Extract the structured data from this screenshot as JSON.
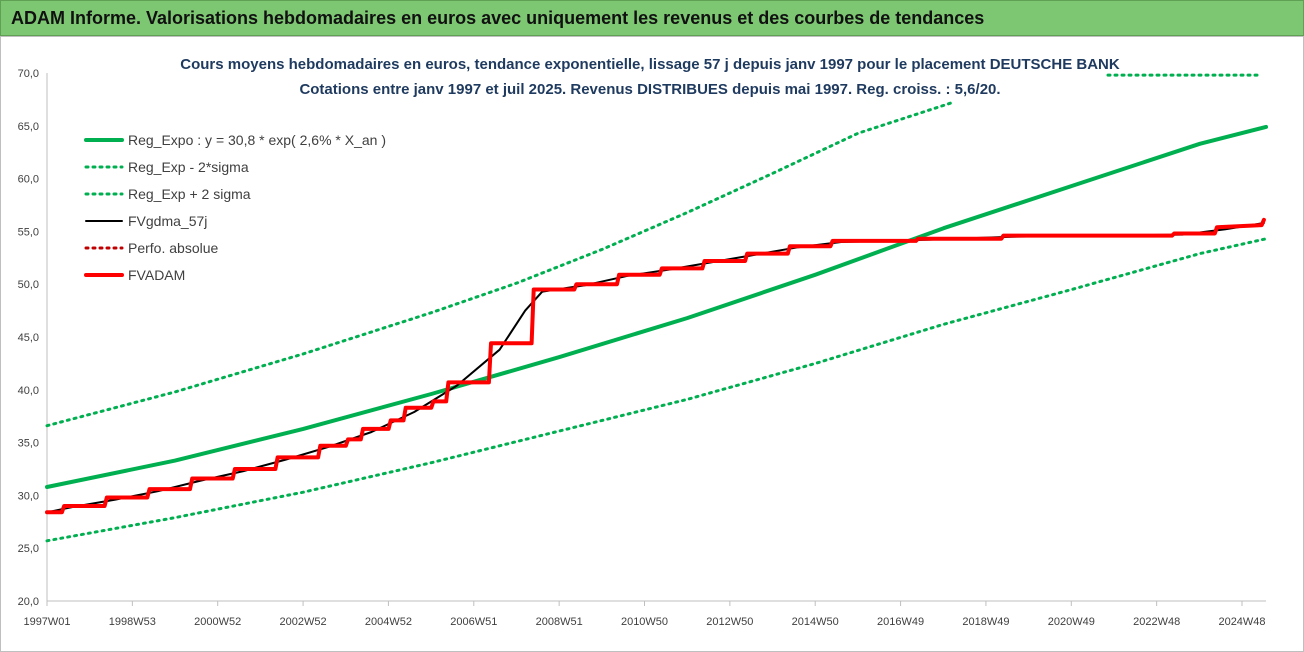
{
  "header": {
    "title": "ADAM Informe. Valorisations hebdomadaires en euros avec uniquement les revenus et des courbes de tendances"
  },
  "colors": {
    "header_bg": "#7dc672",
    "trend_green": "#00b050",
    "adam_red": "#ff0000",
    "fv_black": "#000000",
    "perfo_red": "#c00000"
  },
  "chart_data": {
    "type": "line",
    "title_line1": "Cours moyens hebdomadaires en euros, tendance exponentielle, lissage 57 j depuis janv 1997 pour le placement DEUTSCHE BANK",
    "title_line2": "Cotations entre janv 1997 et juil 2025. Revenus DISTRIBUES depuis mai 1997. Reg. croiss. : 5,6/20.",
    "ylim": [
      20,
      70
    ],
    "y_ticks": [
      "20,0",
      "25,0",
      "30,0",
      "35,0",
      "40,0",
      "45,0",
      "50,0",
      "55,0",
      "60,0",
      "65,0",
      "70,0"
    ],
    "x_ticks": [
      "1997W01",
      "1998W53",
      "2000W52",
      "2002W52",
      "2004W52",
      "2006W51",
      "2008W51",
      "2010W50",
      "2012W50",
      "2014W50",
      "2016W49",
      "2018W49",
      "2020W49",
      "2022W48",
      "2024W48"
    ],
    "xlim": [
      1997.0,
      2025.55
    ],
    "legend_position": "top-left",
    "legend": [
      {
        "label": "Reg_Expo : y = 30,8 * exp( 2,6% *  X_an )",
        "color": "#00b050",
        "style": "solid-thick"
      },
      {
        "label": "Reg_Exp - 2*sigma",
        "color": "#00b050",
        "style": "dotted"
      },
      {
        "label": "Reg_Exp + 2 sigma",
        "color": "#00b050",
        "style": "dotted"
      },
      {
        "label": "FVgdma_57j",
        "color": "#000000",
        "style": "solid"
      },
      {
        "label": "Perfo. absolue",
        "color": "#c00000",
        "style": "dotted"
      },
      {
        "label": "FVADAM",
        "color": "#ff0000",
        "style": "solid-thick"
      }
    ],
    "series": [
      {
        "name": "Reg_Expo : y = 30,8 * exp( 2,6% *  X_an )",
        "x": [
          1997.0,
          2000.0,
          2003.0,
          2006.0,
          2009.0,
          2012.0,
          2015.0,
          2018.0,
          2021.0,
          2024.0,
          2025.55
        ],
        "y": [
          30.8,
          33.3,
          36.3,
          39.6,
          43.1,
          46.8,
          50.9,
          55.3,
          59.3,
          63.3,
          64.9
        ]
      },
      {
        "name": "Reg_Exp - 2*sigma",
        "x": [
          1997.0,
          2000.0,
          2003.0,
          2006.0,
          2009.0,
          2012.0,
          2015.0,
          2018.0,
          2021.0,
          2024.0,
          2025.55
        ],
        "y": [
          25.7,
          27.9,
          30.3,
          33.1,
          36.1,
          39.1,
          42.5,
          46.2,
          49.5,
          52.9,
          54.3
        ]
      },
      {
        "name": "Reg_Exp + 2 sigma",
        "x": [
          1997.0,
          2000.0,
          2003.0,
          2006.0,
          2008.0,
          2010.0,
          2012.0,
          2014.0,
          2016.0,
          2018.2
        ],
        "y": [
          36.6,
          39.8,
          43.4,
          47.3,
          50.1,
          53.3,
          56.8,
          60.5,
          64.3,
          67.2
        ]
      },
      {
        "name": "FVADAM",
        "x": [
          1997.0,
          1997.35,
          1997.4,
          1998.35,
          1998.4,
          1999.35,
          1999.4,
          2000.35,
          2000.4,
          2001.35,
          2001.4,
          2002.35,
          2002.4,
          2003.35,
          2003.4,
          2004.0,
          2004.05,
          2004.35,
          2004.4,
          2005.0,
          2005.05,
          2005.35,
          2005.4,
          2006.0,
          2006.05,
          2006.35,
          2006.4,
          2007.35,
          2007.4,
          2008.35,
          2008.4,
          2009.35,
          2009.4,
          2010.35,
          2010.4,
          2011.35,
          2011.4,
          2012.35,
          2012.4,
          2013.35,
          2013.4,
          2014.35,
          2014.4,
          2015.35,
          2015.4,
          2017.35,
          2017.4,
          2019.35,
          2019.4,
          2023.35,
          2023.4,
          2024.35,
          2024.4,
          2025.45,
          2025.5
        ],
        "y": [
          28.4,
          28.4,
          29.0,
          29.0,
          29.8,
          29.8,
          30.6,
          30.6,
          31.6,
          31.6,
          32.5,
          32.5,
          33.6,
          33.6,
          34.7,
          34.7,
          35.3,
          35.3,
          36.3,
          36.3,
          37.1,
          37.1,
          38.3,
          38.3,
          38.9,
          38.9,
          40.7,
          40.7,
          44.4,
          44.4,
          49.5,
          49.5,
          50.0,
          50.0,
          50.9,
          50.9,
          51.5,
          51.5,
          52.2,
          52.2,
          52.9,
          52.9,
          53.6,
          53.6,
          54.1,
          54.1,
          54.3,
          54.3,
          54.6,
          54.6,
          54.8,
          54.8,
          55.4,
          55.6,
          56.1
        ]
      },
      {
        "name": "FVgdma_57j",
        "x": [
          1997.0,
          1997.6,
          1998.6,
          1999.6,
          2000.6,
          2001.6,
          2002.6,
          2003.6,
          2004.6,
          2005.6,
          2006.6,
          2007.6,
          2008.2,
          2008.6,
          2009.6,
          2010.6,
          2011.6,
          2012.6,
          2013.6,
          2014.6,
          2015.6,
          2017.6,
          2019.6,
          2023.6,
          2024.6,
          2025.5
        ],
        "y": [
          28.4,
          28.9,
          29.6,
          30.4,
          31.4,
          32.3,
          33.4,
          34.6,
          36.0,
          37.9,
          40.4,
          43.8,
          47.5,
          49.3,
          49.9,
          50.8,
          51.4,
          52.1,
          52.8,
          53.5,
          54.0,
          54.2,
          54.5,
          54.7,
          55.2,
          55.8
        ]
      }
    ],
    "top_right_dotted_value": 69.8
  }
}
